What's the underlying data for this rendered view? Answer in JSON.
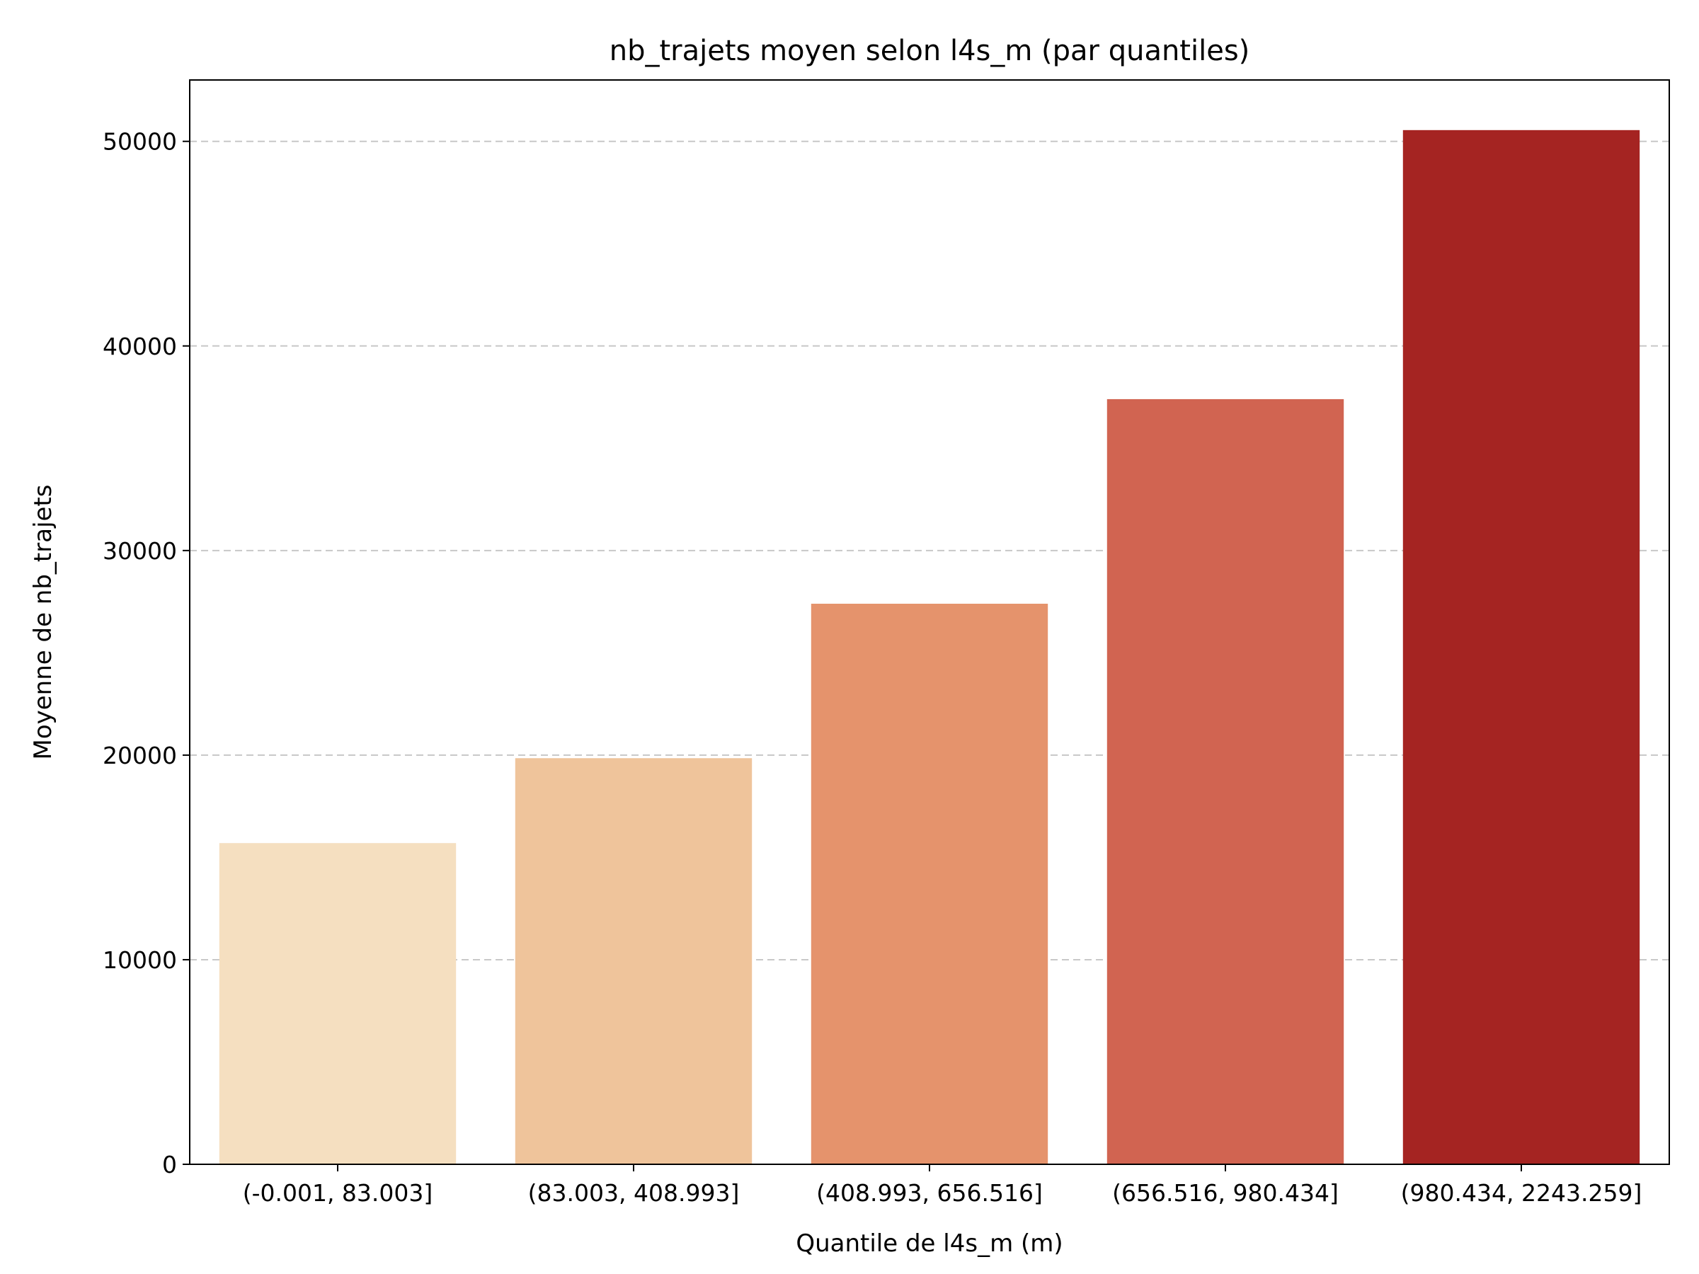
{
  "chart_data": {
    "type": "bar",
    "title": "nb_trajets moyen selon l4s_m (par quantiles)",
    "xlabel": "Quantile de l4s_m (m)",
    "ylabel": "Moyenne de nb_trajets",
    "categories": [
      "(-0.001, 83.003]",
      "(83.003, 408.993]",
      "(408.993, 656.516]",
      "(656.516, 980.434]",
      "(980.434, 2243.259]"
    ],
    "values": [
      15700,
      19850,
      27400,
      37400,
      50550
    ],
    "colors": [
      "#f5dfc0",
      "#efc49b",
      "#e5936c",
      "#d16451",
      "#a52422"
    ],
    "ylim": [
      0,
      53000
    ],
    "yticks": [
      0,
      10000,
      20000,
      30000,
      40000,
      50000
    ],
    "ytick_labels": [
      "0",
      "10000",
      "20000",
      "30000",
      "40000",
      "50000"
    ],
    "grid": "y-dashed",
    "legend": "none"
  }
}
